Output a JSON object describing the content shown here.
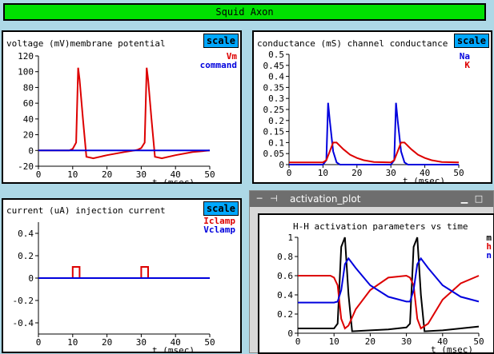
{
  "app": {
    "title": "Squid Axon"
  },
  "scale_label": "scale",
  "graphs": {
    "voltage": {
      "title": "voltage (mV)membrane potential",
      "xlabel": "t (msec)",
      "xticks": [
        "0",
        "10",
        "20",
        "30",
        "40",
        "50"
      ],
      "yticks": [
        "120",
        "100",
        "80",
        "60",
        "40",
        "20",
        "0",
        "-20"
      ],
      "legend": [
        {
          "name": "Vm",
          "color": "#dd0000"
        },
        {
          "name": "command",
          "color": "#0000dd"
        }
      ]
    },
    "conductance": {
      "title": "conductance (mS) channel conductance",
      "xlabel": "t (msec)",
      "xticks": [
        "0",
        "10",
        "20",
        "30",
        "40",
        "50"
      ],
      "yticks": [
        "0.5",
        "0.45",
        "0.4",
        "0.35",
        "0.3",
        "0.25",
        "0.2",
        "0.15",
        "0.1",
        "0.05",
        "0"
      ],
      "legend": [
        {
          "name": "Na",
          "color": "#0000dd"
        },
        {
          "name": "K",
          "color": "#dd0000"
        }
      ]
    },
    "current": {
      "title": "current (uA) injection current",
      "xlabel": "t (msec)",
      "xticks": [
        "0",
        "10",
        "20",
        "30",
        "40",
        "50"
      ],
      "yticks": [
        "0.4",
        "0.2",
        "0",
        "-0.2",
        "-0.4"
      ],
      "legend": [
        {
          "name": "Iclamp",
          "color": "#dd0000"
        },
        {
          "name": "Vclamp",
          "color": "#0000dd"
        }
      ]
    },
    "activation": {
      "window_title": "activation_plot",
      "title": "H-H activation parameters vs time",
      "xlabel": "t (msec)",
      "xticks": [
        "0",
        "10",
        "20",
        "30",
        "40",
        "50"
      ],
      "yticks": [
        "1",
        "0.8",
        "0.6",
        "0.4",
        "0.2",
        "0"
      ],
      "legend": [
        {
          "name": "m",
          "color": "#000000"
        },
        {
          "name": "h",
          "color": "#dd0000"
        },
        {
          "name": "n",
          "color": "#0000dd"
        }
      ]
    }
  },
  "chart_data": [
    {
      "type": "line",
      "title": "voltage (mV)membrane potential",
      "xlabel": "t (msec)",
      "ylabel": "",
      "xlim": [
        0,
        50
      ],
      "ylim": [
        -20,
        120
      ],
      "series": [
        {
          "name": "Vm",
          "x": [
            0,
            9,
            10,
            11,
            11.6,
            12,
            13,
            14,
            16,
            20,
            25,
            28,
            29,
            30,
            31,
            31.6,
            32,
            33,
            34,
            36,
            40,
            45,
            50
          ],
          "y": [
            0,
            0,
            2,
            10,
            105,
            90,
            40,
            -8,
            -10,
            -6,
            -2,
            0,
            1,
            3,
            10,
            105,
            90,
            40,
            -8,
            -10,
            -6,
            -2,
            0
          ]
        },
        {
          "name": "command",
          "x": [
            0,
            50
          ],
          "y": [
            0,
            0
          ]
        }
      ]
    },
    {
      "type": "line",
      "title": "conductance (mS) channel conductance",
      "xlabel": "t (msec)",
      "ylabel": "",
      "xlim": [
        0,
        50
      ],
      "ylim": [
        0,
        0.5
      ],
      "series": [
        {
          "name": "Na",
          "x": [
            0,
            10,
            11,
            11.5,
            12,
            13,
            14,
            15,
            30,
            31,
            31.5,
            32,
            33,
            34,
            35,
            50
          ],
          "y": [
            0,
            0,
            0.02,
            0.28,
            0.2,
            0.06,
            0.01,
            0,
            0,
            0.02,
            0.28,
            0.2,
            0.06,
            0.01,
            0,
            0
          ]
        },
        {
          "name": "K",
          "x": [
            0,
            10,
            11,
            12,
            13,
            14,
            16,
            18,
            20,
            22,
            25,
            30,
            31,
            32,
            33,
            34,
            36,
            38,
            40,
            42,
            45,
            50
          ],
          "y": [
            0.01,
            0.01,
            0.02,
            0.06,
            0.1,
            0.1,
            0.07,
            0.045,
            0.03,
            0.02,
            0.012,
            0.01,
            0.02,
            0.06,
            0.1,
            0.1,
            0.07,
            0.045,
            0.03,
            0.02,
            0.012,
            0.01
          ]
        }
      ]
    },
    {
      "type": "line",
      "title": "current (uA) injection current",
      "xlabel": "t (msec)",
      "ylabel": "",
      "xlim": [
        0,
        50
      ],
      "ylim": [
        -0.5,
        0.5
      ],
      "series": [
        {
          "name": "Iclamp",
          "x": [
            0,
            10,
            10,
            12,
            12,
            30,
            30,
            32,
            32,
            50
          ],
          "y": [
            0,
            0,
            0.1,
            0.1,
            0,
            0,
            0.1,
            0.1,
            0,
            0
          ]
        },
        {
          "name": "Vclamp",
          "x": [
            0,
            50
          ],
          "y": [
            0,
            0
          ]
        }
      ]
    },
    {
      "type": "line",
      "title": "H-H activation parameters vs time",
      "xlabel": "t (msec)",
      "ylabel": "",
      "xlim": [
        0,
        50
      ],
      "ylim": [
        0,
        1
      ],
      "series": [
        {
          "name": "m",
          "x": [
            0,
            10,
            11,
            12,
            13,
            14,
            15,
            20,
            25,
            30,
            31,
            32,
            33,
            34,
            35,
            40,
            45,
            50
          ],
          "y": [
            0.05,
            0.05,
            0.1,
            0.9,
            1.0,
            0.4,
            0.02,
            0.03,
            0.04,
            0.06,
            0.1,
            0.9,
            1.0,
            0.4,
            0.02,
            0.03,
            0.05,
            0.07
          ]
        },
        {
          "name": "h",
          "x": [
            0,
            9,
            10,
            11,
            12,
            13,
            14,
            16,
            20,
            25,
            30,
            31,
            32,
            33,
            34,
            36,
            40,
            45,
            50
          ],
          "y": [
            0.6,
            0.6,
            0.58,
            0.5,
            0.15,
            0.05,
            0.08,
            0.25,
            0.45,
            0.58,
            0.6,
            0.58,
            0.5,
            0.15,
            0.05,
            0.1,
            0.35,
            0.52,
            0.6
          ]
        },
        {
          "name": "n",
          "x": [
            0,
            10,
            11,
            12,
            13,
            14,
            16,
            20,
            25,
            30,
            31,
            32,
            33,
            34,
            36,
            40,
            45,
            50
          ],
          "y": [
            0.32,
            0.32,
            0.33,
            0.45,
            0.72,
            0.78,
            0.68,
            0.5,
            0.38,
            0.33,
            0.33,
            0.45,
            0.72,
            0.78,
            0.68,
            0.5,
            0.38,
            0.33
          ]
        }
      ]
    }
  ]
}
